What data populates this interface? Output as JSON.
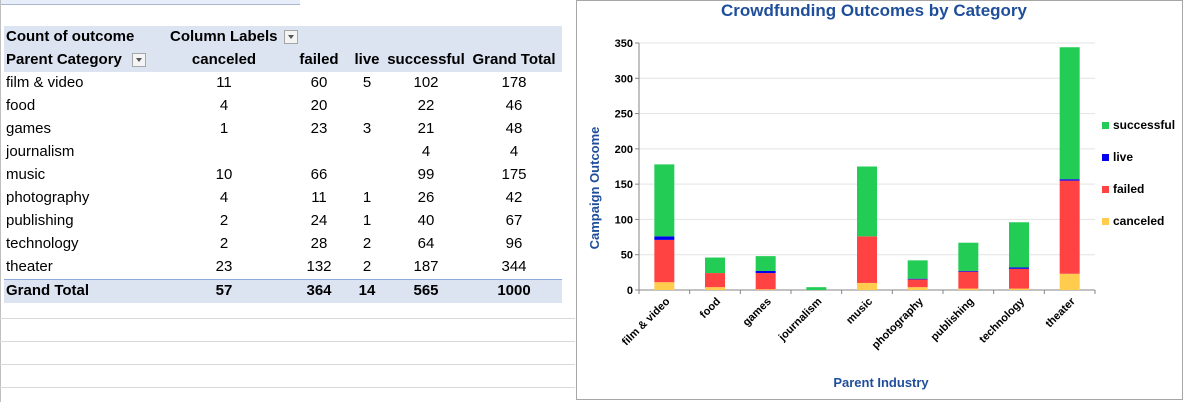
{
  "pivot": {
    "header1": {
      "label": "Count of outcome",
      "column_labels": "Column Labels"
    },
    "header2": {
      "row_label": "Parent Category",
      "columns": [
        "canceled",
        "failed",
        "live",
        "successful",
        "Grand Total"
      ]
    },
    "rows": [
      {
        "category": "film & video",
        "canceled": "11",
        "failed": "60",
        "live": "5",
        "successful": "102",
        "total": "178"
      },
      {
        "category": "food",
        "canceled": "4",
        "failed": "20",
        "live": "",
        "successful": "22",
        "total": "46"
      },
      {
        "category": "games",
        "canceled": "1",
        "failed": "23",
        "live": "3",
        "successful": "21",
        "total": "48"
      },
      {
        "category": "journalism",
        "canceled": "",
        "failed": "",
        "live": "",
        "successful": "4",
        "total": "4"
      },
      {
        "category": "music",
        "canceled": "10",
        "failed": "66",
        "live": "",
        "successful": "99",
        "total": "175"
      },
      {
        "category": "photography",
        "canceled": "4",
        "failed": "11",
        "live": "1",
        "successful": "26",
        "total": "42"
      },
      {
        "category": "publishing",
        "canceled": "2",
        "failed": "24",
        "live": "1",
        "successful": "40",
        "total": "67"
      },
      {
        "category": "technology",
        "canceled": "2",
        "failed": "28",
        "live": "2",
        "successful": "64",
        "total": "96"
      },
      {
        "category": "theater",
        "canceled": "23",
        "failed": "132",
        "live": "2",
        "successful": "187",
        "total": "344"
      }
    ],
    "grand_total": {
      "category": "Grand Total",
      "canceled": "57",
      "failed": "364",
      "live": "14",
      "successful": "565",
      "total": "1000"
    }
  },
  "chart_data": {
    "type": "bar",
    "stacked": true,
    "title": "Crowdfunding Outcomes by Category",
    "xlabel": "Parent Industry",
    "ylabel": "Campaign Outcome",
    "ylim": [
      0,
      350
    ],
    "yticks": [
      0,
      50,
      100,
      150,
      200,
      250,
      300,
      350
    ],
    "grid": true,
    "legend_position": "right",
    "categories": [
      "film & video",
      "food",
      "games",
      "journalism",
      "music",
      "photography",
      "publishing",
      "technology",
      "theater"
    ],
    "series": [
      {
        "name": "canceled",
        "color": "#ffcc4d",
        "values": [
          11,
          4,
          1,
          0,
          10,
          4,
          2,
          2,
          23
        ]
      },
      {
        "name": "failed",
        "color": "#ff4343",
        "values": [
          60,
          20,
          23,
          0,
          66,
          11,
          24,
          28,
          132
        ]
      },
      {
        "name": "live",
        "color": "#0000ee",
        "values": [
          5,
          0,
          3,
          0,
          0,
          1,
          1,
          2,
          2
        ]
      },
      {
        "name": "successful",
        "color": "#22cc55",
        "values": [
          102,
          22,
          21,
          4,
          99,
          26,
          40,
          64,
          187
        ]
      }
    ],
    "colors": {
      "title": "#1f4e9a",
      "axis_label": "#1f4e9a"
    }
  }
}
